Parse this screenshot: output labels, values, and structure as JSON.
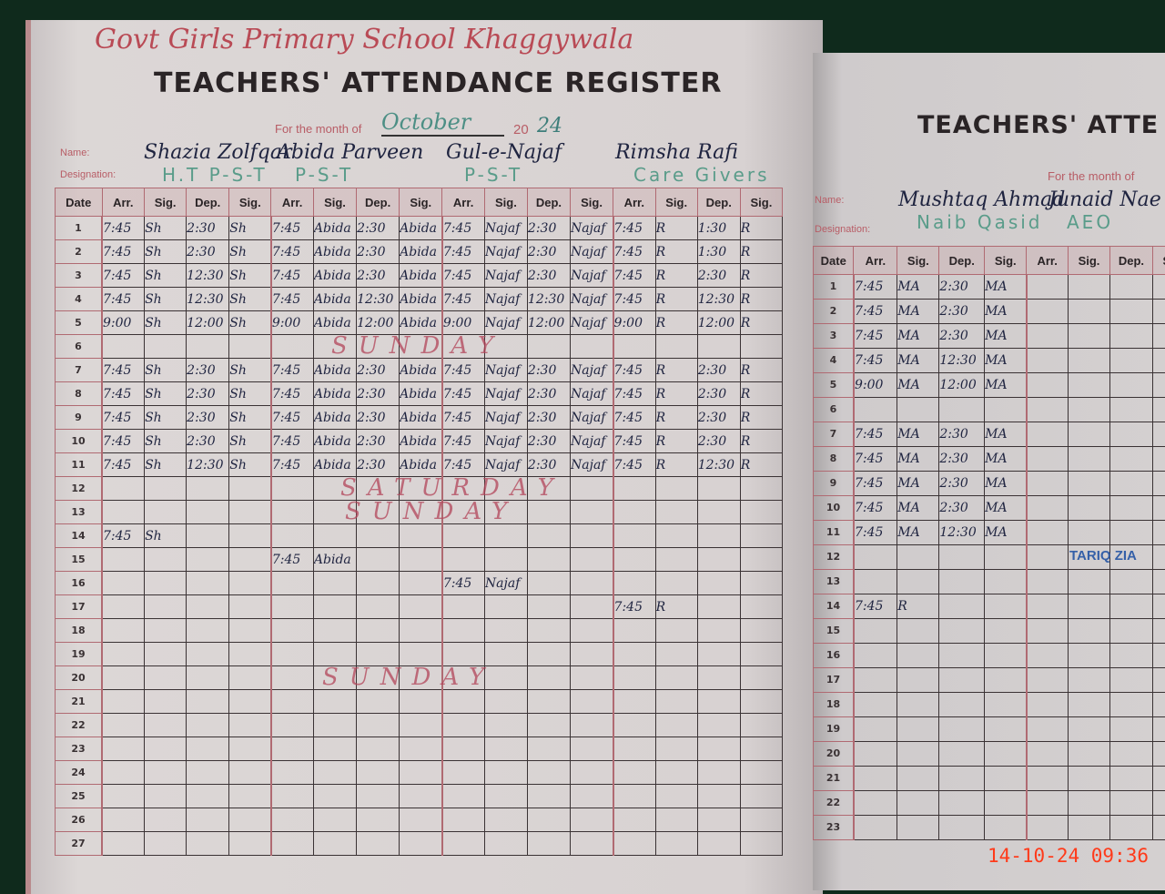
{
  "left_page": {
    "school_handwritten": "Govt Girls Primary School Khaggywala",
    "title": "TEACHERS' ATTENDANCE REGISTER",
    "month_label": "For the month of",
    "month_value": "October",
    "year_prefix": "20",
    "year_value": "24",
    "name_label": "Name:",
    "designation_label": "Designation:",
    "col_headers": {
      "date": "Date",
      "arr": "Arr.",
      "sig": "Sig.",
      "dep": "Dep.",
      "sig2": "Sig."
    },
    "teachers": [
      {
        "name": "Shazia Zolfqar",
        "designation": "H.T  P-S-T",
        "entries": {
          "1": [
            "7:45",
            "Sh",
            "2:30",
            "Sh"
          ],
          "2": [
            "7:45",
            "Sh",
            "2:30",
            "Sh"
          ],
          "3": [
            "7:45",
            "Sh",
            "12:30",
            "Sh"
          ],
          "4": [
            "7:45",
            "Sh",
            "12:30",
            "Sh"
          ],
          "5": [
            "9:00",
            "Sh",
            "12:00",
            "Sh"
          ],
          "7": [
            "7:45",
            "Sh",
            "2:30",
            "Sh"
          ],
          "8": [
            "7:45",
            "Sh",
            "2:30",
            "Sh"
          ],
          "9": [
            "7:45",
            "Sh",
            "2:30",
            "Sh"
          ],
          "10": [
            "7:45",
            "Sh",
            "2:30",
            "Sh"
          ],
          "11": [
            "7:45",
            "Sh",
            "12:30",
            "Sh"
          ],
          "14": [
            "7:45",
            "Sh",
            "",
            ""
          ]
        }
      },
      {
        "name": "Abida Parveen",
        "designation": "P-S-T",
        "entries": {
          "1": [
            "7:45",
            "Abida",
            "2:30",
            "Abida"
          ],
          "2": [
            "7:45",
            "Abida",
            "2:30",
            "Abida"
          ],
          "3": [
            "7:45",
            "Abida",
            "2:30",
            "Abida"
          ],
          "4": [
            "7:45",
            "Abida",
            "12:30",
            "Abida"
          ],
          "5": [
            "9:00",
            "Abida",
            "12:00",
            "Abida"
          ],
          "7": [
            "7:45",
            "Abida",
            "2:30",
            "Abida"
          ],
          "8": [
            "7:45",
            "Abida",
            "2:30",
            "Abida"
          ],
          "9": [
            "7:45",
            "Abida",
            "2:30",
            "Abida"
          ],
          "10": [
            "7:45",
            "Abida",
            "2:30",
            "Abida"
          ],
          "11": [
            "7:45",
            "Abida",
            "2:30",
            "Abida"
          ],
          "15": [
            "7:45",
            "Abida",
            "",
            ""
          ]
        }
      },
      {
        "name": "Gul-e-Najaf",
        "designation": "P-S-T",
        "entries": {
          "1": [
            "7:45",
            "Najaf",
            "2:30",
            "Najaf"
          ],
          "2": [
            "7:45",
            "Najaf",
            "2:30",
            "Najaf"
          ],
          "3": [
            "7:45",
            "Najaf",
            "2:30",
            "Najaf"
          ],
          "4": [
            "7:45",
            "Najaf",
            "12:30",
            "Najaf"
          ],
          "5": [
            "9:00",
            "Najaf",
            "12:00",
            "Najaf"
          ],
          "7": [
            "7:45",
            "Najaf",
            "2:30",
            "Najaf"
          ],
          "8": [
            "7:45",
            "Najaf",
            "2:30",
            "Najaf"
          ],
          "9": [
            "7:45",
            "Najaf",
            "2:30",
            "Najaf"
          ],
          "10": [
            "7:45",
            "Najaf",
            "2:30",
            "Najaf"
          ],
          "11": [
            "7:45",
            "Najaf",
            "2:30",
            "Najaf"
          ],
          "16": [
            "7:45",
            "Najaf",
            "",
            ""
          ]
        }
      },
      {
        "name": "Rimsha Rafi",
        "designation": "Care Givers",
        "entries": {
          "1": [
            "7:45",
            "R",
            "1:30",
            "R"
          ],
          "2": [
            "7:45",
            "R",
            "1:30",
            "R"
          ],
          "3": [
            "7:45",
            "R",
            "2:30",
            "R"
          ],
          "4": [
            "7:45",
            "R",
            "12:30",
            "R"
          ],
          "5": [
            "9:00",
            "R",
            "12:00",
            "R"
          ],
          "7": [
            "7:45",
            "R",
            "2:30",
            "R"
          ],
          "8": [
            "7:45",
            "R",
            "2:30",
            "R"
          ],
          "9": [
            "7:45",
            "R",
            "2:30",
            "R"
          ],
          "10": [
            "7:45",
            "R",
            "2:30",
            "R"
          ],
          "11": [
            "7:45",
            "R",
            "12:30",
            "R"
          ],
          "17": [
            "7:45",
            "R",
            "",
            ""
          ]
        }
      }
    ],
    "row_count": 27,
    "annotations": {
      "sunday_1": "SUNDAY",
      "saturday": "SATURDAY",
      "sunday_2": "SUNDAY",
      "sunday_3": "SUNDAY"
    }
  },
  "right_page": {
    "title": "TEACHERS' ATTE",
    "month_label": "For the month of",
    "name_label": "Name:",
    "designation_label": "Designation:",
    "col_headers": {
      "date": "Date",
      "arr": "Arr.",
      "sig": "Sig.",
      "dep": "Dep.",
      "sig2": "Sig."
    },
    "teachers": [
      {
        "name": "Mushtaq Ahmad",
        "designation": "Naib Qasid",
        "entries": {
          "1": [
            "7:45",
            "MA",
            "2:30",
            "MA"
          ],
          "2": [
            "7:45",
            "MA",
            "2:30",
            "MA"
          ],
          "3": [
            "7:45",
            "MA",
            "2:30",
            "MA"
          ],
          "4": [
            "7:45",
            "MA",
            "12:30",
            "MA"
          ],
          "5": [
            "9:00",
            "MA",
            "12:00",
            "MA"
          ],
          "7": [
            "7:45",
            "MA",
            "2:30",
            "MA"
          ],
          "8": [
            "7:45",
            "MA",
            "2:30",
            "MA"
          ],
          "9": [
            "7:45",
            "MA",
            "2:30",
            "MA"
          ],
          "10": [
            "7:45",
            "MA",
            "2:30",
            "MA"
          ],
          "11": [
            "7:45",
            "MA",
            "12:30",
            "MA"
          ],
          "14": [
            "7:45",
            "R",
            "",
            ""
          ]
        }
      },
      {
        "name": "Junaid Nae",
        "designation": "AEO",
        "entries": {}
      }
    ],
    "row_count": 23,
    "stamp": "TARIQ ZIA"
  },
  "timestamp": "14-10-24  09:36"
}
